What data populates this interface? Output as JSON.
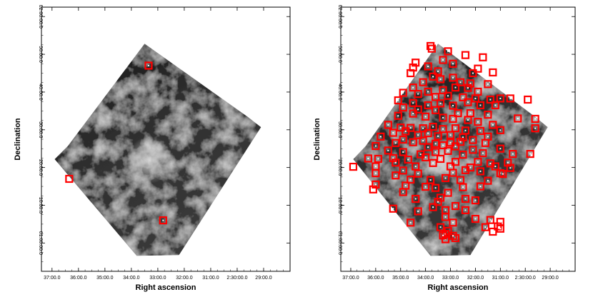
{
  "chart_data": [
    {
      "type": "scatter",
      "panel": "left",
      "xlabel": "Right ascension",
      "ylabel": "Declination",
      "x_ticks": [
        "37:00.0",
        "36:00.0",
        "35:00.0",
        "34:00.0",
        "33:00.0",
        "32:00.0",
        "31:00.0",
        "2:30:00.0",
        "29:00.0"
      ],
      "y_ticks": [
        "62:00:00.0",
        "50:00.0",
        "40:00.0",
        "30:00.0",
        "20:00.0",
        "10:00.0",
        "61:00:00.0"
      ],
      "grid": false,
      "marker_color": "#ff0000",
      "background": "grayscale infrared image",
      "points": [
        [
          36.35,
          17
        ],
        [
          33.35,
          47
        ],
        [
          32.8,
          6
        ]
      ]
    },
    {
      "type": "scatter",
      "panel": "right",
      "xlabel": "Right ascension",
      "ylabel": "Declination",
      "x_ticks": [
        "37:00.0",
        "36:00.0",
        "35:00.0",
        "34:00.0",
        "33:00.0",
        "32:00.0",
        "31:00.0",
        "2:30:00.0",
        "29:00.0"
      ],
      "y_ticks": [
        "62:00:00.0",
        "50:00.0",
        "40:00.0",
        "30:00.0",
        "20:00.0",
        "10:00.0",
        "61:00:00.0"
      ],
      "grid": false,
      "marker_color": "#ff0000",
      "background": "grayscale infrared image",
      "points": [
        [
          33.8,
          52.2
        ],
        [
          33.75,
          51.5
        ],
        [
          33.1,
          50.8
        ],
        [
          32.4,
          49.8
        ],
        [
          31.7,
          49.2
        ],
        [
          34.4,
          47.8
        ],
        [
          33.3,
          48.5
        ],
        [
          32.9,
          47.5
        ],
        [
          31.3,
          45.2
        ],
        [
          31.9,
          46.2
        ],
        [
          32.1,
          45.0
        ],
        [
          34.5,
          46.5
        ],
        [
          33.9,
          46.8
        ],
        [
          33.5,
          45.5
        ],
        [
          34.6,
          45.0
        ],
        [
          33.7,
          44.1
        ],
        [
          34.1,
          42.6
        ],
        [
          33.4,
          43.4
        ],
        [
          32.9,
          43.8
        ],
        [
          32.6,
          42.6
        ],
        [
          32.2,
          42.3
        ],
        [
          31.5,
          42.1
        ],
        [
          34.5,
          41.2
        ],
        [
          33.9,
          40.1
        ],
        [
          33.3,
          40.5
        ],
        [
          32.8,
          41.2
        ],
        [
          32.3,
          41.1
        ],
        [
          31.9,
          40.1
        ],
        [
          34.9,
          39.8
        ],
        [
          34.3,
          39.5
        ],
        [
          33.6,
          38.7
        ],
        [
          33.1,
          39.0
        ],
        [
          32.5,
          38.6
        ],
        [
          32.0,
          38.3
        ],
        [
          31.4,
          38.0
        ],
        [
          31.0,
          38.3
        ],
        [
          30.6,
          38.3
        ],
        [
          29.9,
          38.0
        ],
        [
          35.1,
          37.8
        ],
        [
          34.5,
          37.1
        ],
        [
          33.9,
          36.5
        ],
        [
          33.4,
          37.0
        ],
        [
          32.9,
          36.4
        ],
        [
          32.3,
          37.3
        ],
        [
          31.8,
          36.5
        ],
        [
          31.2,
          36.5
        ],
        [
          34.9,
          35.9
        ],
        [
          34.3,
          35.4
        ],
        [
          33.6,
          35.2
        ],
        [
          32.7,
          34.4
        ],
        [
          32.2,
          34.4
        ],
        [
          31.5,
          34.0
        ],
        [
          35.1,
          33.7
        ],
        [
          34.5,
          34.3
        ],
        [
          34.0,
          33.5
        ],
        [
          33.3,
          33.2
        ],
        [
          32.9,
          32.9
        ],
        [
          32.3,
          32.6
        ],
        [
          31.9,
          32.1
        ],
        [
          31.3,
          31.3
        ],
        [
          30.3,
          33.0
        ],
        [
          29.6,
          32.9
        ],
        [
          35.5,
          31.3
        ],
        [
          35.0,
          30.6
        ],
        [
          34.6,
          30.5
        ],
        [
          34.1,
          30.4
        ],
        [
          33.7,
          30.8
        ],
        [
          33.3,
          30.2
        ],
        [
          32.8,
          30.4
        ],
        [
          32.4,
          29.8
        ],
        [
          31.8,
          29.7
        ],
        [
          31.0,
          29.9
        ],
        [
          29.6,
          30.4
        ],
        [
          35.3,
          29.2
        ],
        [
          34.8,
          29.6
        ],
        [
          34.3,
          28.6
        ],
        [
          33.9,
          29.1
        ],
        [
          33.5,
          28.3
        ],
        [
          33.0,
          28.6
        ],
        [
          32.5,
          28.0
        ],
        [
          31.5,
          28.2
        ],
        [
          35.8,
          28.2
        ],
        [
          34.9,
          27.4
        ],
        [
          34.1,
          27.1
        ],
        [
          33.6,
          26.3
        ],
        [
          33.0,
          26.6
        ],
        [
          32.6,
          26.8
        ],
        [
          32.1,
          27.3
        ],
        [
          31.6,
          26.5
        ],
        [
          36.0,
          25.7
        ],
        [
          35.2,
          26.5
        ],
        [
          34.5,
          26.7
        ],
        [
          33.9,
          25.4
        ],
        [
          33.3,
          25.9
        ],
        [
          32.8,
          25.6
        ],
        [
          32.1,
          24.7
        ],
        [
          31.0,
          25.0
        ],
        [
          35.5,
          24.5
        ],
        [
          34.9,
          24.1
        ],
        [
          34.2,
          23.5
        ],
        [
          33.6,
          24.1
        ],
        [
          33.1,
          24.4
        ],
        [
          32.5,
          23.4
        ],
        [
          31.7,
          23.8
        ],
        [
          30.5,
          23.6
        ],
        [
          29.8,
          23.6
        ],
        [
          36.3,
          22.4
        ],
        [
          35.9,
          22.3
        ],
        [
          35.3,
          22.5
        ],
        [
          34.7,
          22.1
        ],
        [
          34.0,
          22.7
        ],
        [
          33.4,
          22.3
        ],
        [
          32.8,
          21.5
        ],
        [
          31.9,
          21.5
        ],
        [
          31.4,
          21.1
        ],
        [
          30.7,
          21.3
        ],
        [
          36.9,
          20.2
        ],
        [
          36.0,
          20.3
        ],
        [
          35.2,
          21.3
        ],
        [
          34.4,
          20.3
        ],
        [
          33.7,
          21.2
        ],
        [
          33.0,
          20.3
        ],
        [
          32.2,
          20.0
        ],
        [
          31.2,
          20.3
        ],
        [
          30.6,
          19.9
        ],
        [
          34.9,
          19.2
        ],
        [
          34.3,
          18.4
        ],
        [
          32.9,
          18.6
        ],
        [
          32.4,
          19.3
        ],
        [
          31.8,
          19.0
        ],
        [
          31.0,
          18.5
        ],
        [
          30.9,
          18.3
        ],
        [
          36.0,
          18.5
        ],
        [
          35.2,
          17.9
        ],
        [
          34.6,
          16.8
        ],
        [
          33.8,
          16.7
        ],
        [
          33.2,
          17.2
        ],
        [
          32.6,
          16.7
        ],
        [
          31.5,
          16.5
        ],
        [
          36.0,
          15.5
        ],
        [
          34.8,
          15.2
        ],
        [
          34.0,
          14.9
        ],
        [
          33.6,
          14.6
        ],
        [
          32.5,
          14.8
        ],
        [
          31.8,
          15.0
        ],
        [
          36.1,
          14.2
        ],
        [
          34.9,
          13.5
        ],
        [
          33.1,
          13.3
        ],
        [
          33.4,
          12.0
        ],
        [
          32.4,
          11.7
        ],
        [
          32.0,
          11.3
        ],
        [
          34.4,
          11.7
        ],
        [
          33.5,
          10.9
        ],
        [
          32.8,
          9.8
        ],
        [
          33.7,
          9.5
        ],
        [
          35.3,
          9.1
        ],
        [
          34.3,
          8.4
        ],
        [
          33.2,
          8.7
        ],
        [
          32.4,
          8.7
        ],
        [
          33.2,
          6.9
        ],
        [
          34.6,
          5.4
        ],
        [
          32.9,
          5.4
        ],
        [
          33.4,
          4.2
        ],
        [
          31.6,
          4.2
        ],
        [
          31.1,
          4.4
        ],
        [
          31.0,
          5.6
        ],
        [
          32.0,
          6.4
        ],
        [
          31.4,
          6.1
        ],
        [
          33.1,
          3.2
        ],
        [
          33.2,
          2.4
        ],
        [
          32.8,
          1.3
        ],
        [
          31.0,
          3.8
        ],
        [
          31.3,
          3.0
        ],
        [
          32.9,
          1.9
        ],
        [
          33.2,
          1.0
        ],
        [
          33.3,
          2.0
        ]
      ]
    }
  ]
}
